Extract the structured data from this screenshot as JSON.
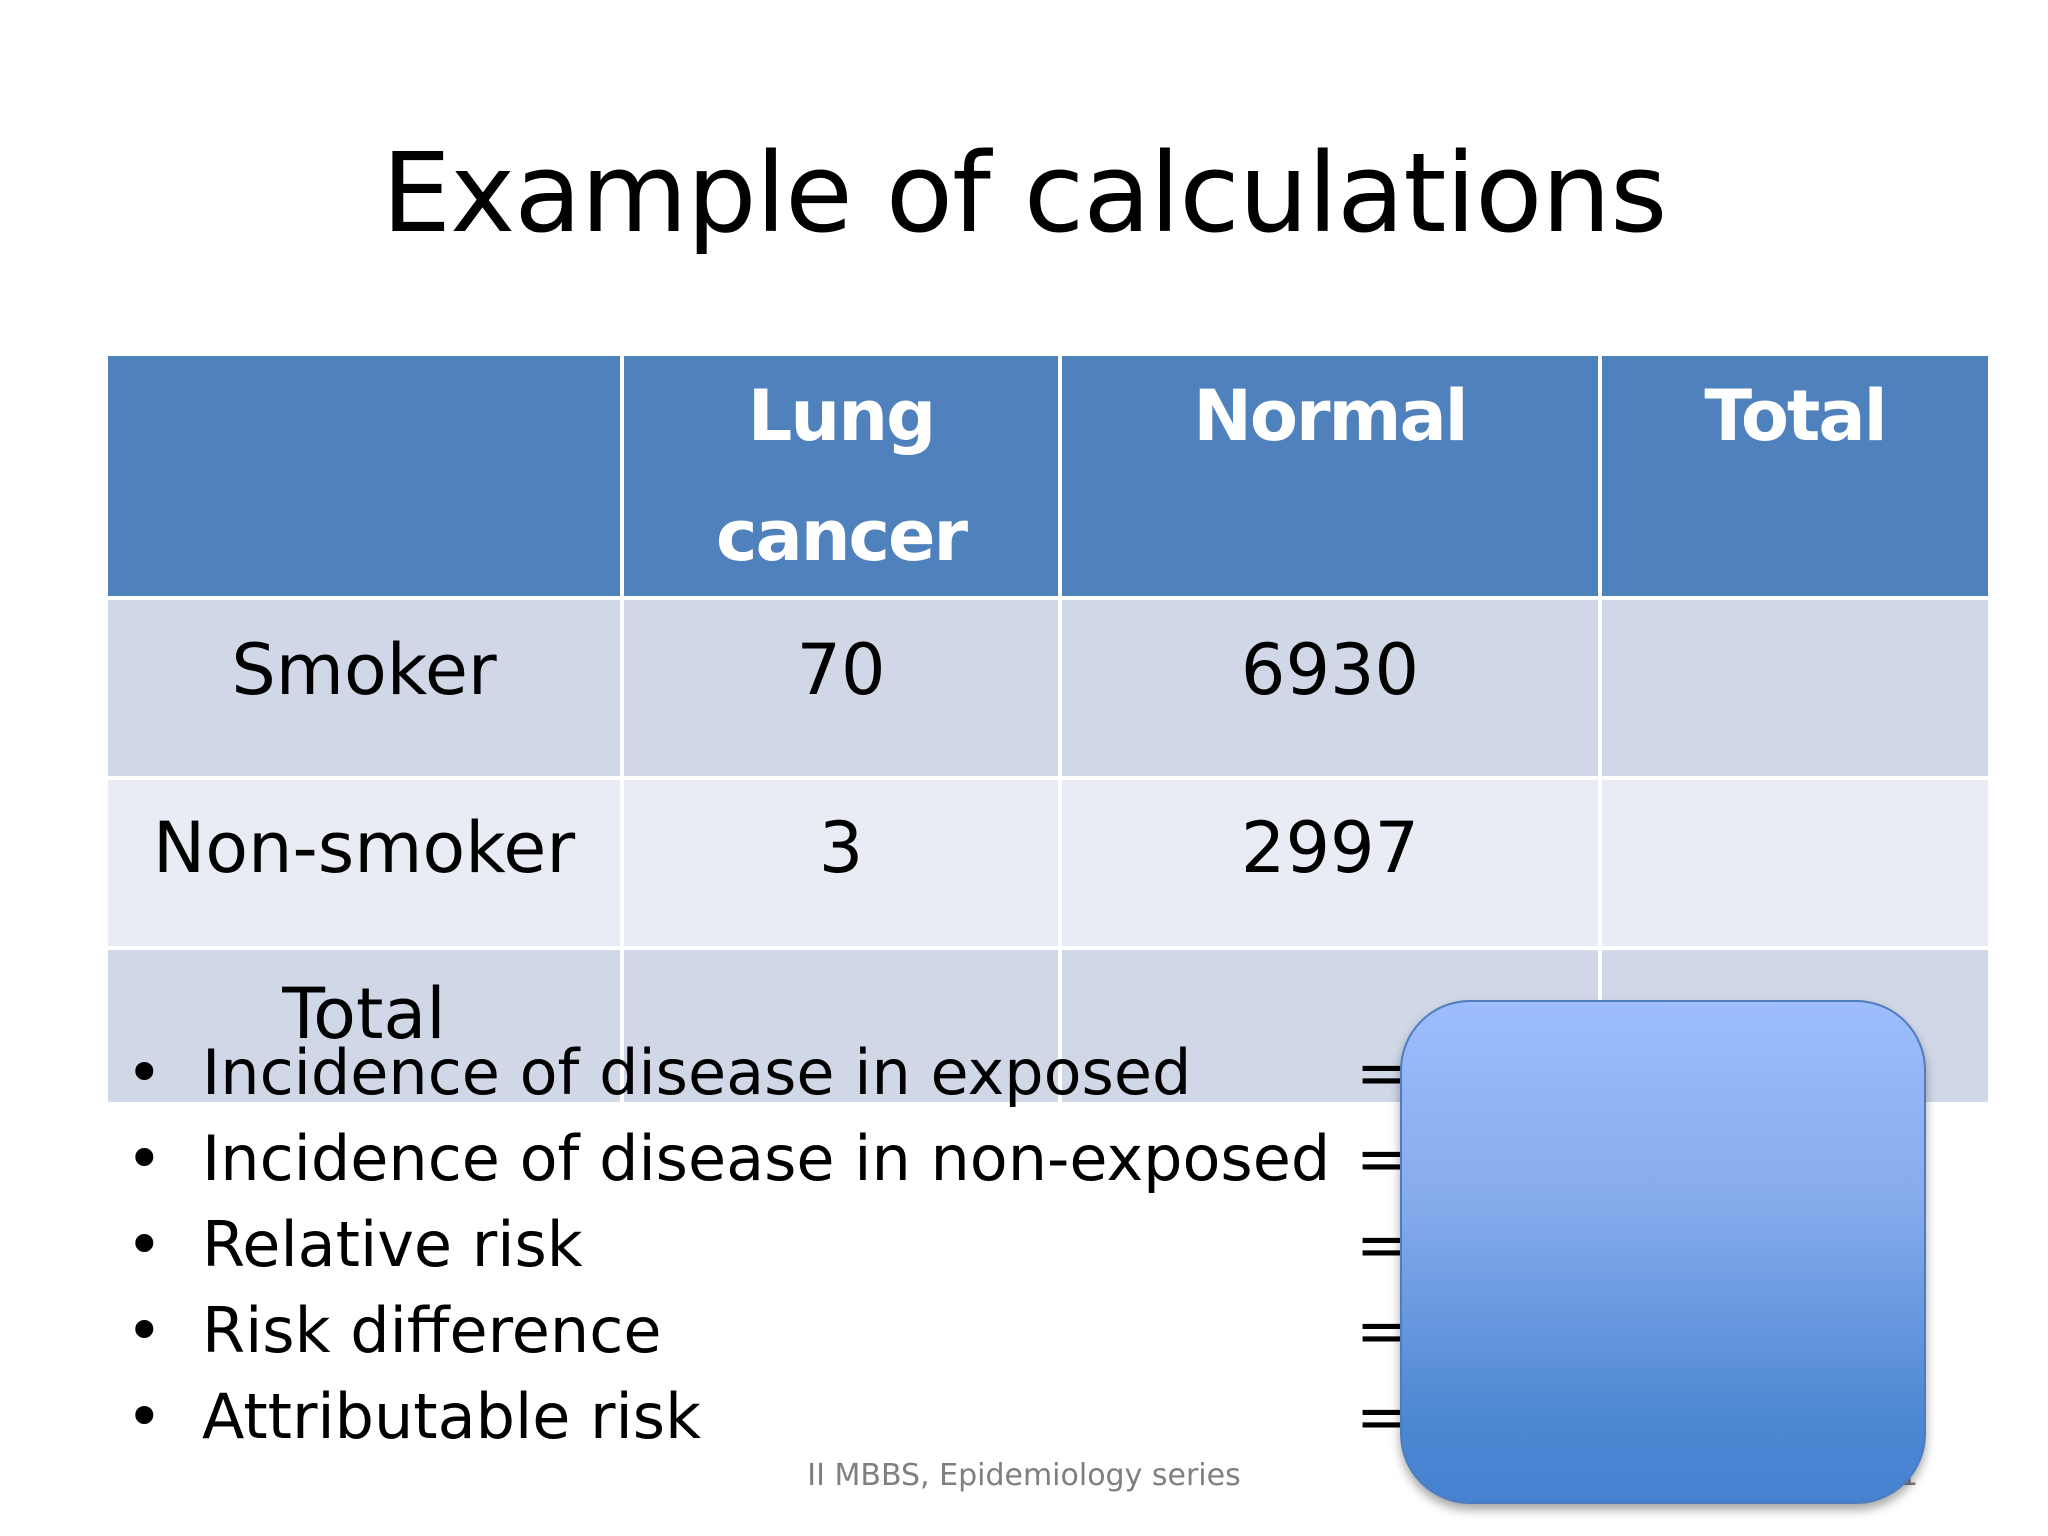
{
  "slide": {
    "title": "Example of calculations",
    "table": {
      "headers": [
        "",
        "Lung cancer",
        "Normal",
        "Total"
      ],
      "rows": [
        [
          "Smoker",
          "70",
          "6930",
          ""
        ],
        [
          "Non-smoker",
          "3",
          "2997",
          ""
        ],
        [
          "Total",
          "",
          "",
          ""
        ]
      ]
    },
    "bullets": [
      "Incidence of disease in exposed",
      "Incidence of disease in non-exposed",
      "Relative risk",
      "Risk difference",
      "Attributable risk"
    ],
    "bullet_symbol": "•",
    "equals_symbol": "=",
    "footer": "II MBBS, Epidemiology series",
    "page_number": "21",
    "colors": {
      "header_bg": "#4f81bd",
      "row_dark": "#d0d8e8",
      "row_light": "#e9ecf4",
      "cover_box_top": "#9dbdff",
      "cover_box_bottom": "#4582d0"
    }
  }
}
